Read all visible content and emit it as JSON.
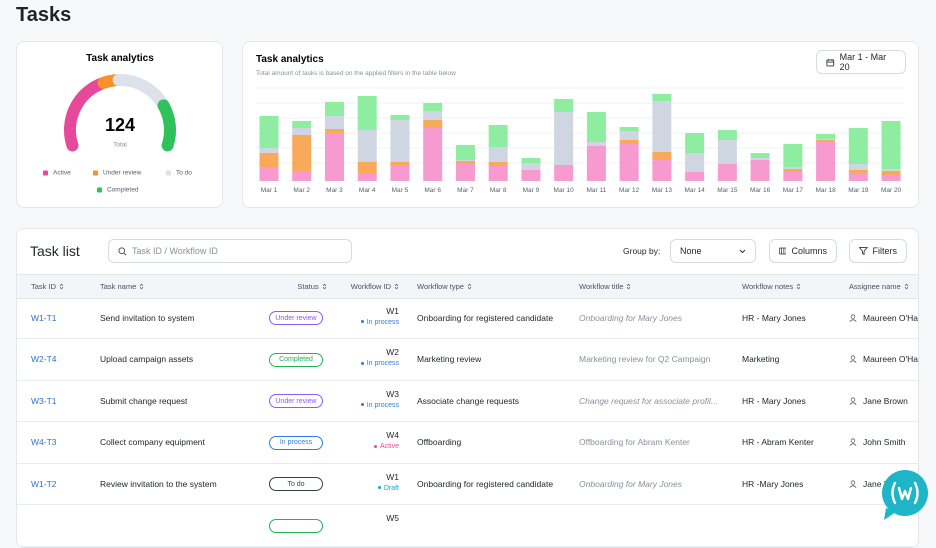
{
  "page_title": "Tasks",
  "chart_data": [
    {
      "type": "gauge",
      "title": "Task analytics",
      "center_value": 124,
      "center_label": "Total",
      "categories": [
        "Active",
        "Under review",
        "To do",
        "Completed"
      ],
      "values": [
        50,
        10,
        35,
        29
      ],
      "colors": [
        "#e8489a",
        "#f7902f",
        "#dde2ea",
        "#2fc25b"
      ]
    },
    {
      "type": "bar",
      "stacked": true,
      "title": "Task analytics",
      "subtitle": "Total amount of tasks is based on the applied filters in the table below",
      "date_range": "Mar 1 - Mar 20",
      "categories": [
        "Mar 1",
        "Mar 2",
        "Mar 3",
        "Mar 4",
        "Mar 5",
        "Mar 6",
        "Mar 7",
        "Mar 8",
        "Mar 9",
        "Mar 10",
        "Mar 11",
        "Mar 12",
        "Mar 13",
        "Mar 14",
        "Mar 15",
        "Mar 16",
        "Mar 17",
        "Mar 18",
        "Mar 19",
        "Mar 20"
      ],
      "ylim": [
        0,
        90
      ],
      "series": [
        {
          "color": "#f79ad0",
          "values": [
            14,
            10,
            48,
            8,
            16,
            54,
            17,
            15,
            11,
            16,
            35,
            37,
            21,
            9,
            17,
            21,
            9,
            39,
            8,
            6
          ]
        },
        {
          "color": "#f9a95a",
          "values": [
            14,
            36,
            4,
            11,
            3,
            7,
            3,
            4,
            0,
            0,
            0,
            4,
            8,
            0,
            0,
            0,
            3,
            2,
            3,
            4
          ]
        },
        {
          "color": "#cfd6e2",
          "values": [
            5,
            7,
            13,
            32,
            42,
            9,
            1,
            15,
            7,
            53,
            4,
            9,
            51,
            19,
            24,
            2,
            2,
            1,
            6,
            2
          ]
        },
        {
          "color": "#8eeda1",
          "values": [
            32,
            7,
            14,
            34,
            5,
            8,
            15,
            22,
            5,
            13,
            30,
            4,
            7,
            20,
            10,
            5,
            23,
            5,
            36,
            48
          ]
        }
      ]
    }
  ],
  "task_list": {
    "title": "Task list",
    "search_placeholder": "Task ID / Workflow ID",
    "group_by_label": "Group by:",
    "group_by_value": "None",
    "columns_button": "Columns",
    "filters_button": "Filters",
    "columns": [
      "Task ID",
      "Task name",
      "Status",
      "Workflow ID",
      "Workflow type",
      "Workflow title",
      "Workflow notes",
      "Assignee name"
    ],
    "rows": [
      {
        "task_id": "W1-T1",
        "task_name": "Send invitation to system",
        "status": "Under review",
        "status_color": "#8b5cf6",
        "workflow_id": "W1",
        "workflow_state": "In process",
        "state_color": "#2f7be0",
        "workflow_type": "Onboarding for registered candidate",
        "workflow_title": "Onboarding for Mary Jones",
        "workflow_title_italic": true,
        "workflow_notes": "HR - Mary Jones",
        "assignee": "Maureen O'Har"
      },
      {
        "task_id": "W2-T4",
        "task_name": "Upload campaign assets",
        "status": "Completed",
        "status_color": "#22b454",
        "workflow_id": "W2",
        "workflow_state": "In process",
        "state_color": "#2f7be0",
        "workflow_type": "Marketing review",
        "workflow_title": "Marketing review for Q2 Campaign",
        "workflow_title_italic": false,
        "workflow_notes": "Marketing",
        "assignee": "Maureen O'Har"
      },
      {
        "task_id": "W3-T1",
        "task_name": "Submit change request",
        "status": "Under review",
        "status_color": "#8b5cf6",
        "workflow_id": "W3",
        "workflow_state": "In process",
        "state_color": "#2f7be0",
        "workflow_type": "Associate change requests",
        "workflow_title": "Change request for associate profil...",
        "workflow_title_italic": true,
        "workflow_notes": "HR - Mary Jones",
        "assignee": "Jane Brown"
      },
      {
        "task_id": "W4-T3",
        "task_name": "Collect company equipment",
        "status": "In process",
        "status_color": "#2f7be0",
        "workflow_id": "W4",
        "workflow_state": "Active",
        "state_color": "#e8489a",
        "workflow_type": "Offboarding",
        "workflow_title": "Offboarding for Abram Kenter",
        "workflow_title_italic": false,
        "workflow_notes": "HR - Abram Kenter",
        "assignee": "John Smith"
      },
      {
        "task_id": "W1-T2",
        "task_name": "Review invitation to the system",
        "status": "To do",
        "status_color": "#3b3f46",
        "workflow_id": "W1",
        "workflow_state": "Draft",
        "state_color": "#1aa7c9",
        "workflow_type": "Onboarding for registered candidate",
        "workflow_title": "Onboarding for Mary Jones",
        "workflow_title_italic": true,
        "workflow_notes": "HR -Mary Jones",
        "assignee": "Jane B"
      },
      {
        "status_color": "#22b454",
        "workflow_id": "W5"
      }
    ]
  }
}
